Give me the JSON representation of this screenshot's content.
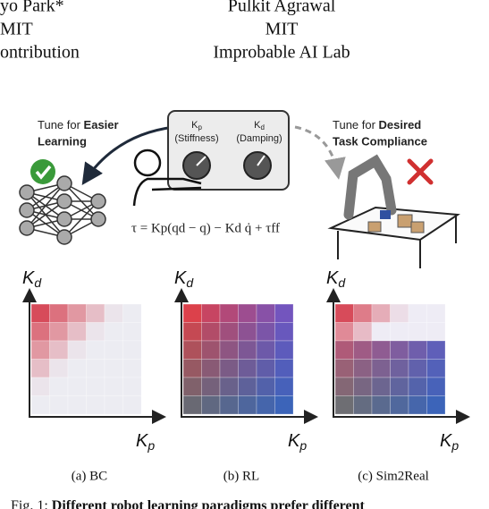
{
  "header": {
    "left": [
      "yo Park*",
      "MIT",
      "ontribution"
    ],
    "center": [
      "Pulkit Agrawal",
      "MIT",
      "Improbable AI Lab"
    ]
  },
  "figure": {
    "left_note": {
      "prefix": "Tune for ",
      "bold": "Easier",
      "line2": "Learning"
    },
    "right_note": {
      "prefix": "Tune for ",
      "bold": "Desired",
      "line2": "Task Compliance"
    },
    "knobs": [
      {
        "symbol": "K",
        "sub": "p",
        "label": "(Stiffness)"
      },
      {
        "symbol": "K",
        "sub": "d",
        "label": "(Damping)"
      }
    ],
    "equation": "τ = Kp(qd − q) − Kd q̇ + τff",
    "panels": [
      {
        "y_label": {
          "main": "K",
          "sub": "d"
        },
        "x_label": {
          "main": "K",
          "sub": "p"
        },
        "caption": "(a) BC"
      },
      {
        "y_label": {
          "main": "K",
          "sub": "d"
        },
        "x_label": {
          "main": "K",
          "sub": "p"
        },
        "caption": "(b) RL"
      },
      {
        "y_label": {
          "main": "K",
          "sub": "d"
        },
        "x_label": {
          "main": "K",
          "sub": "p"
        },
        "caption": "(c) Sim2Real"
      }
    ]
  },
  "caption": {
    "prefix": "Fig. 1: ",
    "bold": "Different robot learning paradigms prefer different"
  }
}
